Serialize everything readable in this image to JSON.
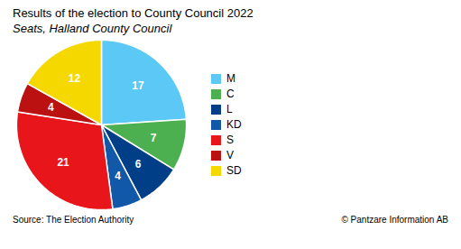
{
  "chart_data": {
    "type": "pie",
    "title": "Results of the election to County Council 2022",
    "subtitle": "Seats, Halland County Council",
    "categories": [
      "M",
      "C",
      "L",
      "KD",
      "S",
      "V",
      "SD"
    ],
    "values": [
      17,
      7,
      6,
      4,
      21,
      4,
      12
    ],
    "colors": [
      "#5BC8F5",
      "#4CAF50",
      "#003E87",
      "#1258A8",
      "#E8151B",
      "#BB1111",
      "#F5D800"
    ],
    "data_labels": true,
    "legend": "right",
    "annotations": [
      "Source: The Election Authority",
      "© Pantzare Information AB"
    ]
  }
}
